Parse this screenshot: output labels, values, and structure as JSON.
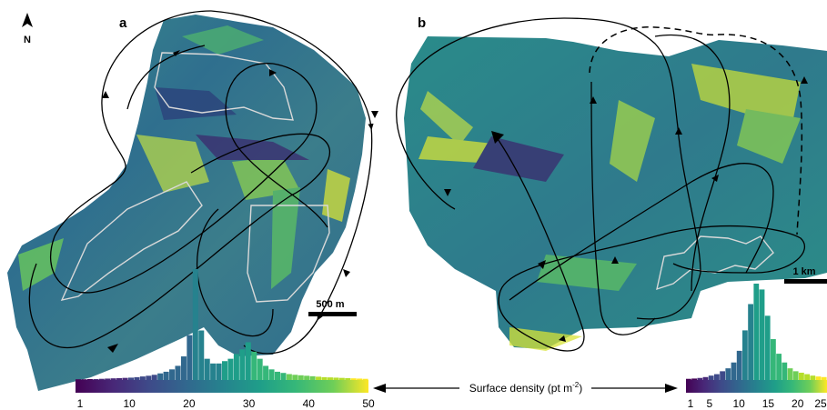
{
  "panels": [
    {
      "label": "a",
      "scalebar": "500 m"
    },
    {
      "label": "b",
      "scalebar": "1 km"
    }
  ],
  "north_arrow": "N",
  "colorbar_title": "Surface density (pt m",
  "colorbar_title_sup": "-2",
  "colorbar_title_end": ")",
  "chart_data": [
    {
      "type": "bar",
      "title": "",
      "xlabel": "Surface density (pt m-2)",
      "x_ticks": [
        "1",
        "10",
        "20",
        "30",
        "40",
        "50"
      ],
      "xlim": [
        1,
        50
      ],
      "bins": [
        1,
        2,
        3,
        4,
        5,
        6,
        7,
        8,
        9,
        10,
        11,
        12,
        13,
        14,
        15,
        16,
        17,
        18,
        19,
        20,
        21,
        22,
        23,
        24,
        25,
        26,
        27,
        28,
        29,
        30,
        31,
        32,
        33,
        34,
        35,
        36,
        37,
        38,
        39,
        40,
        41,
        42,
        43,
        44,
        45,
        46,
        47,
        48,
        49,
        50
      ],
      "values": [
        0.3,
        0.3,
        0.4,
        0.4,
        0.5,
        0.6,
        0.7,
        0.8,
        0.9,
        1.0,
        1.2,
        1.5,
        1.8,
        2.2,
        2.8,
        3.5,
        4.5,
        6,
        10,
        19,
        47,
        21,
        9,
        7,
        7,
        8,
        9,
        11,
        13,
        16,
        12,
        9,
        6,
        4.5,
        3.5,
        3,
        2.5,
        2.2,
        2,
        1.8,
        1.6,
        1.4,
        1.2,
        1.1,
        1,
        0.9,
        0.8,
        0.7,
        0.6,
        0.5
      ]
    },
    {
      "type": "bar",
      "title": "",
      "xlabel": "Surface density (pt m-2)",
      "x_ticks": [
        "1",
        "5",
        "10",
        "15",
        "20",
        "25"
      ],
      "xlim": [
        1,
        25
      ],
      "bins": [
        1,
        2,
        3,
        4,
        5,
        6,
        7,
        8,
        9,
        10,
        11,
        12,
        13,
        14,
        15,
        16,
        17,
        18,
        19,
        20,
        21,
        22,
        23,
        24,
        25
      ],
      "values": [
        0.4,
        0.5,
        0.7,
        1,
        1.5,
        2,
        3,
        4,
        6,
        10,
        17,
        26,
        33,
        31,
        22,
        14,
        9,
        6,
        4,
        3,
        2.5,
        2,
        1.5,
        1.2,
        1
      ]
    }
  ],
  "colors": {
    "background": "#ffffff",
    "track": "#000000",
    "outline": "#d9d9d9",
    "map_base": "#2f6f8e"
  }
}
